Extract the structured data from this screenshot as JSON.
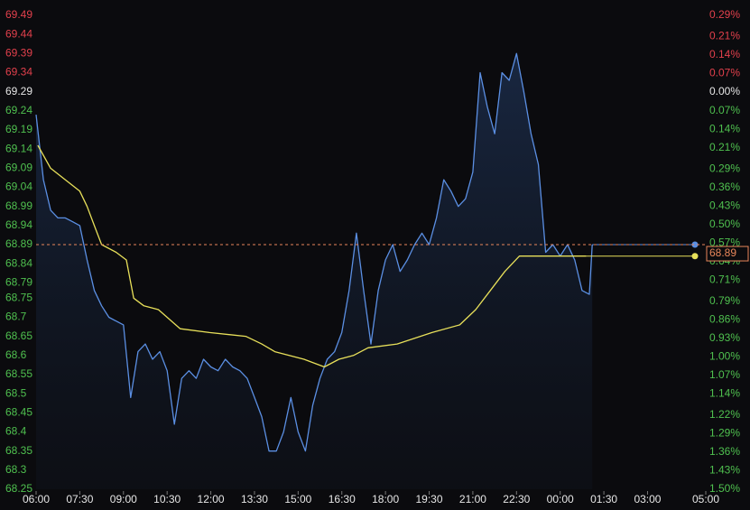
{
  "chart_data": {
    "type": "line",
    "xlim": [
      0,
      23
    ],
    "xticks": [
      {
        "value": 0,
        "label": "06:00"
      },
      {
        "value": 1.5,
        "label": "07:30"
      },
      {
        "value": 3,
        "label": "09:00"
      },
      {
        "value": 4.5,
        "label": "10:30"
      },
      {
        "value": 6,
        "label": "12:00"
      },
      {
        "value": 7.5,
        "label": "13:30"
      },
      {
        "value": 9,
        "label": "15:00"
      },
      {
        "value": 10.5,
        "label": "16:30"
      },
      {
        "value": 12,
        "label": "18:00"
      },
      {
        "value": 13.5,
        "label": "19:30"
      },
      {
        "value": 15,
        "label": "21:00"
      },
      {
        "value": 16.5,
        "label": "22:30"
      },
      {
        "value": 18,
        "label": "00:00"
      },
      {
        "value": 19.5,
        "label": "01:30"
      },
      {
        "value": 21,
        "label": "03:00"
      },
      {
        "value": 23,
        "label": "05:00"
      }
    ],
    "ylim": [
      68.25,
      69.49
    ],
    "yticks": [
      69.49,
      69.44,
      69.39,
      69.34,
      69.29,
      69.24,
      69.19,
      69.14,
      69.09,
      69.04,
      68.99,
      68.94,
      68.89,
      68.84,
      68.79,
      68.75,
      68.7,
      68.65,
      68.6,
      68.55,
      68.5,
      68.45,
      68.4,
      68.35,
      68.3,
      68.25
    ],
    "yticks_labels_fixed": true,
    "y2lim": [
      -1.5,
      0.29
    ],
    "y2ticks": [
      {
        "value": 0.29,
        "label": "0.29%"
      },
      {
        "value": 0.21,
        "label": "0.21%"
      },
      {
        "value": 0.14,
        "label": "0.14%"
      },
      {
        "value": 0.07,
        "label": "0.07%"
      },
      {
        "value": 0,
        "label": "0.00%"
      },
      {
        "value": -0.07,
        "label": "0.07%"
      },
      {
        "value": -0.14,
        "label": "0.14%"
      },
      {
        "value": -0.21,
        "label": "0.21%"
      },
      {
        "value": -0.29,
        "label": "0.29%"
      },
      {
        "value": -0.36,
        "label": "0.36%"
      },
      {
        "value": -0.43,
        "label": "0.43%"
      },
      {
        "value": -0.5,
        "label": "0.50%"
      },
      {
        "value": -0.57,
        "label": "0.57%"
      },
      {
        "value": -0.64,
        "label": "0.64%"
      },
      {
        "value": -0.71,
        "label": "0.71%"
      },
      {
        "value": -0.79,
        "label": "0.79%"
      },
      {
        "value": -0.86,
        "label": "0.86%"
      },
      {
        "value": -0.93,
        "label": "0.93%"
      },
      {
        "value": -1,
        "label": "1.00%"
      },
      {
        "value": -1.07,
        "label": "1.07%"
      },
      {
        "value": -1.14,
        "label": "1.14%"
      },
      {
        "value": -1.22,
        "label": "1.22%"
      },
      {
        "value": -1.29,
        "label": "1.29%"
      },
      {
        "value": -1.36,
        "label": "1.36%"
      },
      {
        "value": -1.43,
        "label": "1.43%"
      },
      {
        "value": -1.5,
        "label": "1.50%"
      }
    ],
    "up_color": "#e2404c",
    "down_color": "#4fc04f",
    "neutral_color": "#e6e6e6",
    "last_price": 68.89,
    "last_price_color": "#e8865a",
    "series": [
      {
        "color": "#5b8fe3",
        "area": true,
        "x": [
          0,
          0.25,
          0.5,
          0.75,
          1,
          1.25,
          1.5,
          1.75,
          2,
          2.25,
          2.5,
          2.75,
          3,
          3.25,
          3.5,
          3.75,
          4,
          4.25,
          4.5,
          4.75,
          5,
          5.25,
          5.5,
          5.75,
          6,
          6.25,
          6.5,
          6.75,
          7,
          7.25,
          7.5,
          7.75,
          8,
          8.25,
          8.5,
          8.75,
          9,
          9.25,
          9.5,
          9.75,
          10,
          10.25,
          10.5,
          10.75,
          11,
          11.25,
          11.5,
          11.75,
          12,
          12.25,
          12.5,
          12.75,
          13,
          13.25,
          13.5,
          13.75,
          14,
          14.25,
          14.5,
          14.75,
          15,
          15.25,
          15.5,
          15.75,
          16,
          16.25,
          16.5,
          16.75,
          17,
          17.25,
          17.5,
          17.75,
          18,
          18.25,
          18.5,
          18.75,
          19,
          19.1
        ],
        "values": [
          69.23,
          69.06,
          68.98,
          68.96,
          68.96,
          68.95,
          68.94,
          68.85,
          68.77,
          68.73,
          68.7,
          68.69,
          68.68,
          68.49,
          68.61,
          68.63,
          68.59,
          68.61,
          68.56,
          68.42,
          68.54,
          68.56,
          68.54,
          68.59,
          68.57,
          68.56,
          68.59,
          68.57,
          68.56,
          68.54,
          68.49,
          68.44,
          68.35,
          68.35,
          68.4,
          68.49,
          68.4,
          68.35,
          68.47,
          68.54,
          68.59,
          68.61,
          68.66,
          68.77,
          68.92,
          68.77,
          68.63,
          68.77,
          68.85,
          68.89,
          68.82,
          68.85,
          68.89,
          68.92,
          68.89,
          68.96,
          69.06,
          69.03,
          68.99,
          69.01,
          69.08,
          69.34,
          69.25,
          69.18,
          69.34,
          69.32,
          69.39,
          69.29,
          69.18,
          69.1,
          68.87,
          68.89,
          68.86,
          68.89,
          68.85,
          68.77,
          68.76,
          68.89
        ]
      },
      {
        "color": "#e8e05a",
        "x": [
          0.06,
          0.5,
          1,
          1.5,
          1.75,
          2,
          2.25,
          2.75,
          3.1,
          3.35,
          3.7,
          4.2,
          4.65,
          4.95,
          5.95,
          7.2,
          7.75,
          8.2,
          9.2,
          9.9,
          10.4,
          10.9,
          11.4,
          12.4,
          13.6,
          14.55,
          15.1,
          15.6,
          16.1,
          16.6,
          17.35,
          18.9
        ],
        "values": [
          69.15,
          69.09,
          69.06,
          69.03,
          68.99,
          68.94,
          68.89,
          68.87,
          68.85,
          68.75,
          68.73,
          68.72,
          68.69,
          68.67,
          68.66,
          68.65,
          68.63,
          68.61,
          68.59,
          68.57,
          68.59,
          68.6,
          68.62,
          68.63,
          68.66,
          68.68,
          68.72,
          68.77,
          68.82,
          68.86,
          68.86,
          68.86
        ]
      }
    ]
  }
}
